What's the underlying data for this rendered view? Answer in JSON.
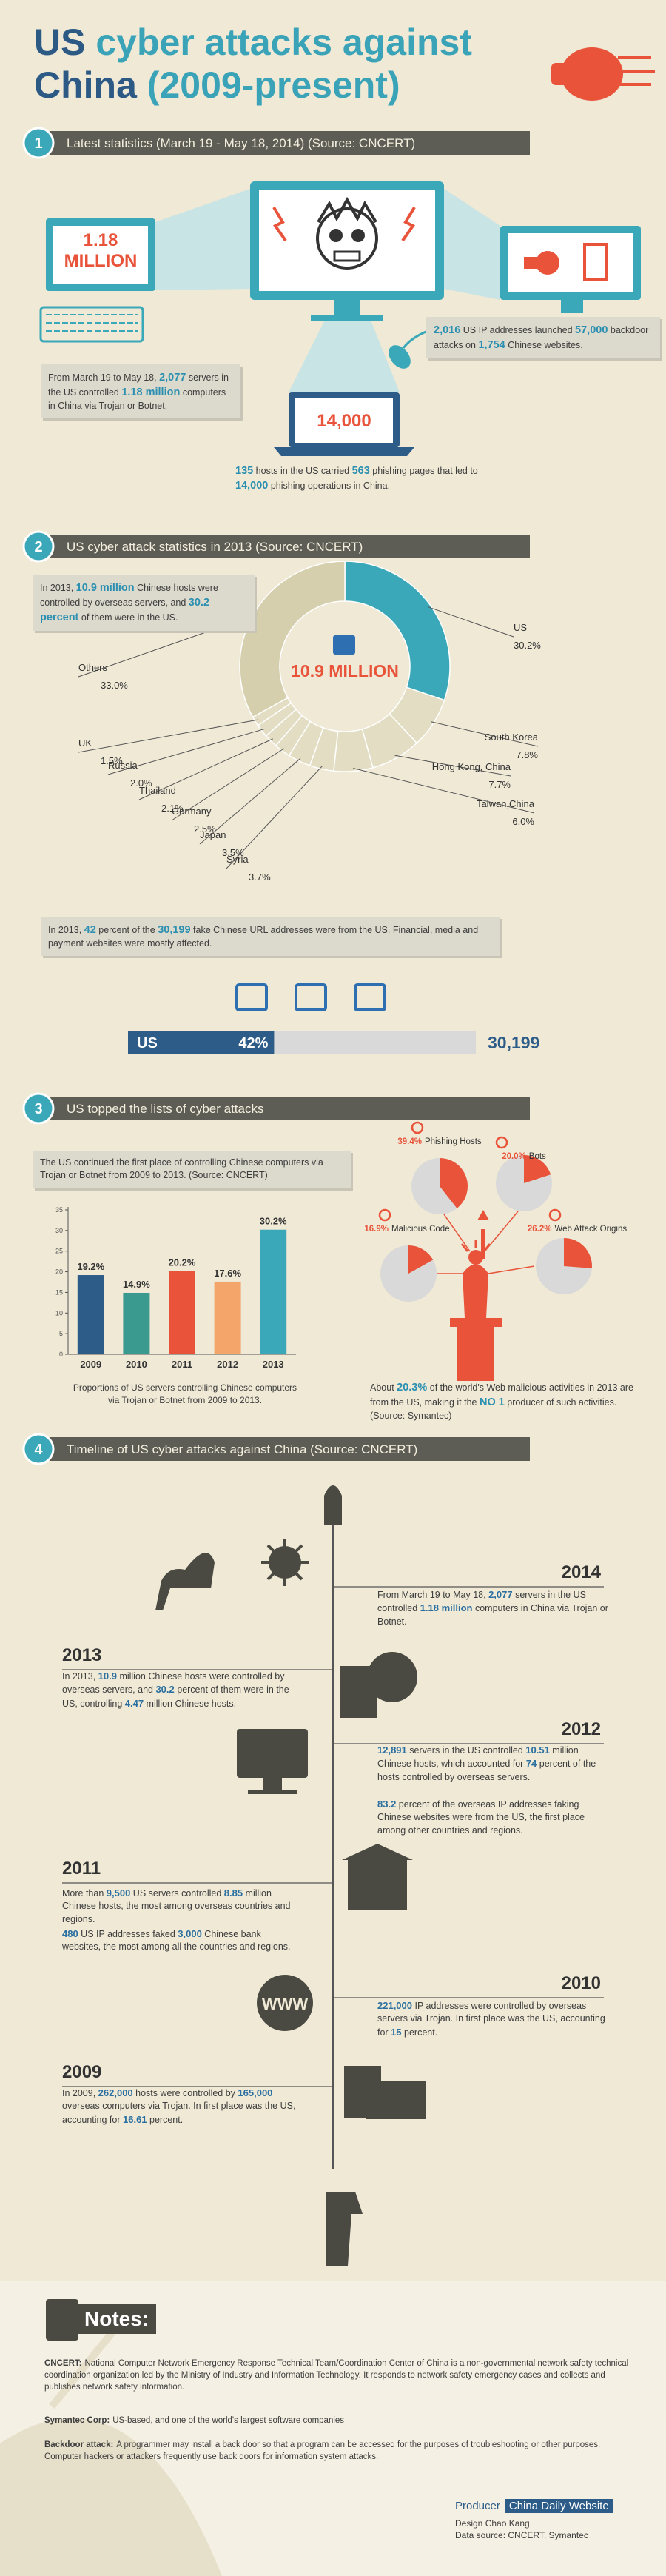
{
  "header": {
    "title_lines": [
      [
        {
          "em": "US"
        },
        " cyber attacks against"
      ],
      [
        {
          "em": "China"
        },
        " (2009-present)"
      ]
    ]
  },
  "sections": [
    {
      "number": "1",
      "title": "Latest statistics (March 19 - May 18, 2014) (Source: CNCERT)",
      "screen_left": "1.18 MILLION",
      "laptop": "14,000",
      "notes": [
        {
          "parts": [
            "From March 19 to May 18, ",
            {
              "em": "2,077"
            },
            " servers in the US controlled ",
            {
              "em": "1.18 million"
            },
            " computers in China via Trojan or Botnet."
          ]
        },
        {
          "parts": [
            {
              "em": "2,016"
            },
            " US IP addresses launched ",
            {
              "em": "57,000"
            },
            " backdoor attacks on ",
            {
              "em": "1,754"
            },
            " Chinese websites."
          ]
        },
        {
          "parts": [
            {
              "em": "135"
            },
            " hosts in the US carried ",
            {
              "em": "563"
            },
            " phishing pages that led to ",
            {
              "em": "14,000"
            },
            " phishing operations in China."
          ]
        }
      ]
    },
    {
      "number": "2",
      "title": "US cyber attack statistics in 2013 (Source: CNCERT)",
      "notes": [
        {
          "parts": [
            "In 2013, ",
            {
              "em": "10.9 million"
            },
            " Chinese hosts were controlled by overseas servers, and ",
            {
              "em": "30.2 percent"
            },
            " of them were in the US."
          ]
        },
        {
          "parts": [
            "In 2013, ",
            {
              "em": "42"
            },
            " percent of the ",
            {
              "em": "30,199"
            },
            " fake Chinese URL addresses were from the US. Financial, media and payment websites were mostly affected."
          ]
        }
      ]
    },
    {
      "number": "3",
      "title": "US topped the lists of cyber attacks",
      "notes": [
        {
          "parts": [
            "The US continued the first place of controlling Chinese computers via Trojan or Botnet from 2009 to 2013. (Source: CNCERT)"
          ]
        },
        {
          "parts": [
            "About ",
            {
              "em": "20.3%"
            },
            " of the world's Web malicious activities in 2013 are from the US, making it the ",
            {
              "em": "NO 1"
            },
            " producer of such activities. (Source: Symantec)"
          ]
        }
      ]
    },
    {
      "number": "4",
      "title": "Timeline of US cyber attacks against China (Source: CNCERT)"
    }
  ],
  "timeline": [
    {
      "year": "2014",
      "notes": [
        {
          "parts": [
            "From March 19 to May 18, ",
            {
              "em": "2,077"
            },
            " servers in the US controlled ",
            {
              "em": "1.18 million"
            },
            " computers in China via Trojan or Botnet."
          ]
        }
      ]
    },
    {
      "year": "2013",
      "notes": [
        {
          "parts": [
            "In 2013, ",
            {
              "em": "10.9"
            },
            " million Chinese hosts were controlled by overseas servers, and ",
            {
              "em": "30.2"
            },
            " percent of them were in the US, controlling ",
            {
              "em": "4.47"
            },
            " million Chinese hosts."
          ]
        }
      ]
    },
    {
      "year": "2012",
      "notes": [
        {
          "parts": [
            {
              "em": "12,891"
            },
            " servers in the US controlled ",
            {
              "em": "10.51"
            },
            " million Chinese hosts, which accounted for ",
            {
              "em": "74"
            },
            " percent of the hosts controlled by overseas servers."
          ]
        },
        {
          "parts": [
            {
              "em": "83.2"
            },
            " percent of the overseas IP addresses faking Chinese websites were from the US, the first place among other countries and regions."
          ]
        }
      ]
    },
    {
      "year": "2011",
      "notes": [
        {
          "parts": [
            "More than ",
            {
              "em": "9,500"
            },
            " US servers controlled ",
            {
              "em": "8.85"
            },
            " million Chinese hosts, the most among overseas countries and regions."
          ]
        },
        {
          "parts": [
            {
              "em": "480"
            },
            " US IP addresses faked ",
            {
              "em": "3,000"
            },
            " Chinese bank websites, the most among all the countries and regions."
          ]
        }
      ]
    },
    {
      "year": "2010",
      "notes": [
        {
          "parts": [
            {
              "em": "221,000"
            },
            " IP addresses were controlled by overseas servers via Trojan. In first place was the US, accounting for ",
            {
              "em": "15"
            },
            " percent."
          ]
        }
      ]
    },
    {
      "year": "2009",
      "notes": [
        {
          "parts": [
            "In 2009, ",
            {
              "em": "262,000"
            },
            " hosts were controlled by ",
            {
              "em": "165,000"
            },
            " overseas computers via Trojan. In first place was the US, accounting for ",
            {
              "em": "16.61"
            },
            " percent."
          ]
        }
      ]
    }
  ],
  "notes": {
    "title": "Notes:",
    "items": [
      {
        "term": "CNCERT:",
        "text": "National Computer Network Emergency Response Technical Team/Coordination Center of China is a non-governmental network safety technical coordination organization led by the Ministry of Industry and Information Technology. It responds to network safety emergency cases and collects and publishes network safety information."
      },
      {
        "term": "Symantec Corp:",
        "text": "US-based, and one of the world's largest software companies"
      },
      {
        "term": "Backdoor attack:",
        "text": "A programmer may install a back door so that a program can be accessed for the purposes of troubleshooting or other purposes. Computer hackers or attackers frequently use back doors for information system attacks."
      }
    ]
  },
  "credits": {
    "producer_label": "Producer",
    "producer": "China Daily Website",
    "design": "Design Chao Kang",
    "source": "Data source: CNCERT, Symantec"
  },
  "chart_data": [
    {
      "type": "donut",
      "center_label": "10.9 MILLION",
      "categories": [
        "US",
        "South Korea",
        "Hong Kong, China",
        "Taiwan,China",
        "Syria",
        "Japan",
        "Germany",
        "Thailand",
        "Russia",
        "UK",
        "Others"
      ],
      "values": [
        30.2,
        7.8,
        7.7,
        6.0,
        3.7,
        3.5,
        2.5,
        2.1,
        2.0,
        1.5,
        33.0
      ],
      "value_labels": [
        "30.2%",
        "7.8%",
        "7.7%",
        "6.0%",
        "3.7%",
        "3.5%",
        "2.5%",
        "2.1%",
        "2.0%",
        "1.5%",
        "33.0%"
      ],
      "colors": [
        "#3aa8b8",
        "#e2ddc3",
        "#e2ddc3",
        "#e2ddc3",
        "#e2ddc3",
        "#e2ddc3",
        "#e2ddc3",
        "#e2ddc3",
        "#e2ddc3",
        "#e2ddc3",
        "#d5cfae"
      ]
    },
    {
      "type": "bar",
      "caption": "Proportions of US servers controlling Chinese computers via Trojan or Botnet from 2009 to 2013.",
      "categories": [
        "2009",
        "2010",
        "2011",
        "2012",
        "2013"
      ],
      "values": [
        19.2,
        14.9,
        20.2,
        17.6,
        30.2
      ],
      "value_labels": [
        "19.2%",
        "14.9%",
        "20.2%",
        "17.6%",
        "30.2%"
      ],
      "colors": [
        "#2d5c88",
        "#3a9a8f",
        "#e8533a",
        "#f4a56a",
        "#3aa8b8"
      ],
      "ylim": [
        0,
        35
      ],
      "yticks": [
        0,
        5,
        10,
        15,
        20,
        25,
        30,
        35
      ]
    },
    {
      "type": "progress",
      "categories": [
        "US"
      ],
      "values": [
        42
      ],
      "value_labels": [
        "42%"
      ],
      "total": {
        "value": 30199,
        "label": "30,199"
      },
      "color": "#2d5c88"
    },
    {
      "type": "pies",
      "categories": [
        "Phishing Hosts",
        "Bots",
        "Malicious Code",
        "Web Attack Origins"
      ],
      "values": [
        39.4,
        20.0,
        16.9,
        26.2
      ],
      "value_labels": [
        "39.4%",
        "20.0%",
        "16.9%",
        "26.2%"
      ],
      "color": "#e8533a"
    }
  ]
}
